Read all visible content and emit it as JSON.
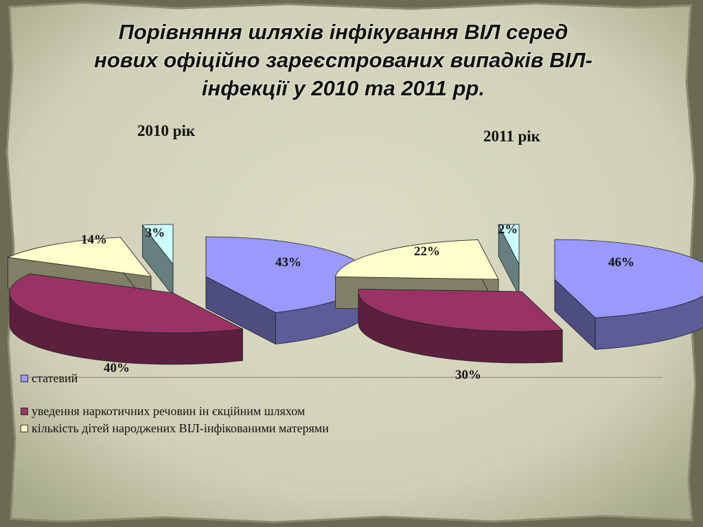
{
  "title": "Порівняння шляхів інфікування ВІЛ серед нових офіційно зареєстрованих випадків ВІЛ-інфекції у 2010 та 2011 рр.",
  "title_lines": [
    "Порівняння шляхів інфікування ВІЛ серед",
    "нових офіційно зареєстрованих випадків ВІЛ-",
    "інфекції у 2010 та 2011 рр."
  ],
  "colors": {
    "statevyi": "#9999ff",
    "narkotychni": "#993366",
    "dity": "#ffffcc",
    "inshe": "#ccffff"
  },
  "legend": [
    {
      "label": "статевий",
      "color": "#9999ff"
    },
    {
      "label": "уведення наркотичних речовин ін єкційним шляхом",
      "color": "#993366"
    },
    {
      "label": "кількість дітей народжених ВІЛ-інфікованими матерями",
      "color": "#ffffcc"
    }
  ],
  "chart_data": [
    {
      "type": "pie",
      "title": "2010 рік",
      "categories": [
        "статевий",
        "уведення наркотичних речовин ін єкційним шляхом",
        "кількість дітей народжених ВІЛ-інфікованими матерями",
        ""
      ],
      "values": [
        43,
        40,
        14,
        3
      ],
      "labels": [
        "43%",
        "40%",
        "14%",
        "3%"
      ],
      "exploded": true,
      "three_d": true
    },
    {
      "type": "pie",
      "title": "2011 рік",
      "categories": [
        "статевий",
        "уведення наркотичних речовин ін єкційним шляхом",
        "кількість дітей народжених ВІЛ-інфікованими матерями",
        ""
      ],
      "values": [
        46,
        30,
        22,
        2
      ],
      "labels": [
        "46%",
        "30%",
        "22%",
        "2%"
      ],
      "exploded": true,
      "three_d": true
    }
  ]
}
